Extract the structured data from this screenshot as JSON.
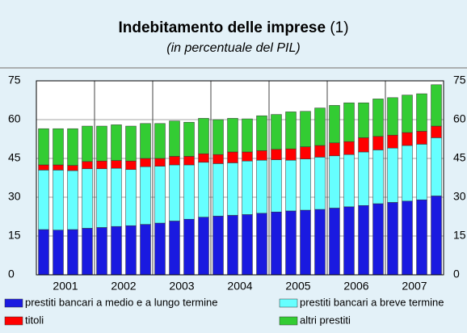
{
  "chart_data": {
    "type": "stacked_bar",
    "title": "Indebitamento delle imprese",
    "title_note": "(1)",
    "subtitle": "(in percentuale del PIL)",
    "categories": [
      null,
      "2001",
      null,
      null,
      null,
      "2002",
      null,
      null,
      null,
      "2003",
      null,
      null,
      null,
      "2004",
      null,
      null,
      null,
      "2005",
      null,
      null,
      null,
      "2006",
      null,
      null,
      null,
      "2007",
      null,
      null
    ],
    "series": [
      {
        "name": "prestiti bancari a medio e a lungo termine",
        "color": "#1a1ae0",
        "values": [
          17.5,
          17.3,
          17.5,
          18,
          18.3,
          18.7,
          19,
          19.5,
          20,
          20.8,
          21.5,
          22.3,
          22.7,
          23,
          23.3,
          23.8,
          24.3,
          24.7,
          25,
          25.3,
          25.8,
          26.3,
          26.8,
          27.5,
          28,
          28.5,
          29,
          30.5
        ]
      },
      {
        "name": "prestiti bancari a breve termine",
        "color": "#66ffff",
        "values": [
          23,
          23.2,
          22.8,
          23,
          22.7,
          22.5,
          21.7,
          22.3,
          22,
          21.7,
          21,
          21.2,
          20.3,
          20.3,
          20.7,
          20.5,
          20.2,
          19.6,
          19.8,
          20.2,
          20.2,
          20.2,
          20.7,
          20.8,
          21,
          21.5,
          21.5,
          22.5
        ]
      },
      {
        "name": "titoli",
        "color": "#ff0000",
        "values": [
          2,
          2,
          2,
          2.8,
          3,
          3,
          3.3,
          3.2,
          3,
          3.3,
          3.3,
          3.3,
          3.5,
          4.2,
          3.5,
          3.7,
          4,
          4.4,
          4.7,
          4.5,
          5,
          5,
          5.5,
          5.2,
          5,
          5,
          5,
          4.5
        ]
      },
      {
        "name": "altri prestiti",
        "color": "#33cc33",
        "values": [
          14,
          14,
          14.2,
          13.7,
          13.5,
          13.8,
          13.5,
          13.5,
          13.5,
          13.7,
          13.2,
          13.7,
          13.5,
          13,
          12.8,
          13.5,
          13.5,
          14.3,
          13.7,
          14.5,
          14.5,
          15,
          13.5,
          14.5,
          14.5,
          14.5,
          14.5,
          16
        ]
      }
    ],
    "ylim": [
      0,
      75
    ],
    "yticks": [
      0,
      15,
      30,
      45,
      60,
      75
    ],
    "y2lim": [
      0,
      75
    ],
    "y2ticks": [
      0,
      15,
      30,
      45,
      60,
      75
    ],
    "grid": true
  }
}
